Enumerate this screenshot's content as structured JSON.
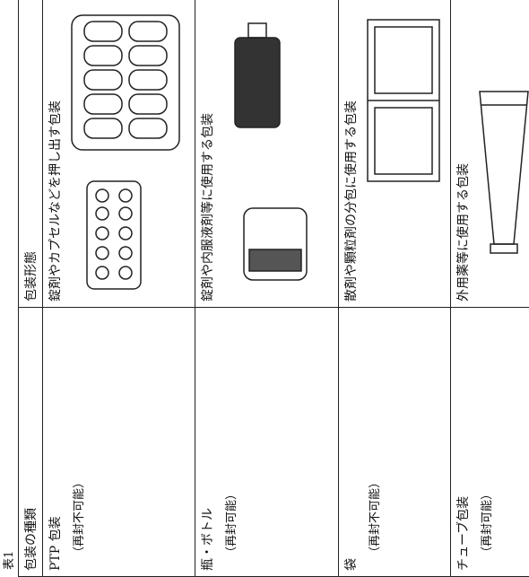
{
  "title": "表1",
  "table": {
    "header": [
      "包装の種類",
      "包装形態"
    ],
    "rows": [
      [
        "PTP 包装",
        "（再封不可能）",
        "錠剤やカプセルなどを押し出す包装"
      ],
      [
        "瓶・ボトル",
        "（再封可能）",
        "錠剤や内服液剤等に使用する包装"
      ],
      [
        "袋",
        "（再封不可能）",
        "散剤や顆粒剤の分包に使用する包装"
      ],
      [
        "チューブ包装",
        "（再封可能）",
        "外用薬等に使用する包装"
      ]
    ]
  }
}
